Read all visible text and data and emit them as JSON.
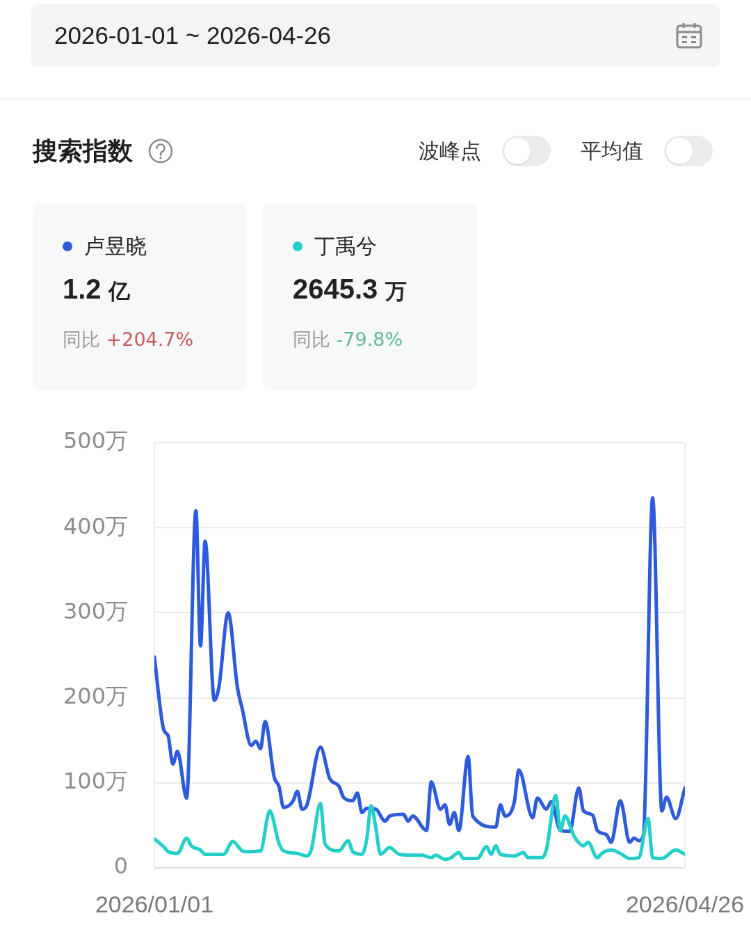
{
  "chart_data": {
    "type": "line",
    "title": "搜索指数",
    "subtitle": "2026-01-01 ~ 2026-04-26",
    "annotations": [
      "波峰点",
      "平均值",
      "1.2 亿",
      "同比 +204.7%",
      "2645.3 万",
      "同比 -79.8%"
    ],
    "xlim": [
      "2026-01-01",
      "2026-04-26"
    ],
    "xticks": [
      {
        "value": "2026-01-01",
        "label": "2026/01/01"
      },
      {
        "value": "2026-04-26",
        "label": "2026/04/26"
      }
    ],
    "ylim": [
      0,
      500
    ],
    "yticks": [
      0,
      {
        "value": 100,
        "label": "100万"
      },
      {
        "value": 200,
        "label": "200万"
      },
      {
        "value": 300,
        "label": "300万"
      },
      {
        "value": 400,
        "label": "400万"
      },
      {
        "value": 500,
        "label": "500万"
      }
    ],
    "grid": "y",
    "legend": "top left",
    "marker": "none",
    "series": [
      {
        "name": "卢昱晓",
        "color": "#2d5bdc",
        "x": [
          "2026-01-01",
          "2026-01-03",
          "2026-01-04",
          "2026-01-05",
          "2026-01-06",
          "2026-01-08",
          "2026-01-10",
          "2026-01-11",
          "2026-01-12",
          "2026-01-14",
          "2026-01-15",
          "2026-01-17",
          "2026-01-19",
          "2026-01-20",
          "2026-01-22",
          "2026-01-23",
          "2026-01-24",
          "2026-01-25",
          "2026-01-27",
          "2026-01-28",
          "2026-01-29",
          "2026-01-31",
          "2026-02-01",
          "2026-02-02",
          "2026-02-03",
          "2026-02-06",
          "2026-02-08",
          "2026-02-10",
          "2026-02-11",
          "2026-02-13",
          "2026-02-14",
          "2026-02-15",
          "2026-02-16",
          "2026-02-18",
          "2026-02-20",
          "2026-02-21",
          "2026-02-24",
          "2026-02-25",
          "2026-02-26",
          "2026-03-01",
          "2026-03-02",
          "2026-03-04",
          "2026-03-05",
          "2026-03-06",
          "2026-03-07",
          "2026-03-08",
          "2026-03-10",
          "2026-03-11",
          "2026-03-16",
          "2026-03-17",
          "2026-03-18",
          "2026-03-20",
          "2026-03-21",
          "2026-03-24",
          "2026-03-25",
          "2026-03-27",
          "2026-03-28",
          "2026-03-30",
          "2026-04-01",
          "2026-04-03",
          "2026-04-04",
          "2026-04-06",
          "2026-04-07",
          "2026-04-09",
          "2026-04-10",
          "2026-04-12",
          "2026-04-14",
          "2026-04-15",
          "2026-04-16",
          "2026-04-17",
          "2026-04-19",
          "2026-04-21",
          "2026-04-22",
          "2026-04-24",
          "2026-04-26"
        ],
        "values": [
          248,
          163,
          155,
          122,
          137,
          82,
          420,
          261,
          384,
          197,
          213,
          300,
          212,
          188,
          144,
          149,
          140,
          172,
          106,
          96,
          71,
          78,
          90,
          69,
          73,
          142,
          105,
          96,
          83,
          79,
          88,
          65,
          70,
          69,
          55,
          61,
          63,
          55,
          61,
          44,
          101,
          69,
          74,
          51,
          65,
          44,
          131,
          61,
          48,
          74,
          61,
          77,
          115,
          59,
          82,
          69,
          78,
          44,
          43,
          94,
          67,
          62,
          44,
          39,
          30,
          79,
          30,
          35,
          32,
          38,
          435,
          67,
          83,
          58,
          94
        ]
      },
      {
        "name": "丁禹兮",
        "color": "#24cfc9",
        "x": [
          "2026-01-01",
          "2026-01-03",
          "2026-01-04",
          "2026-01-06",
          "2026-01-08",
          "2026-01-09",
          "2026-01-11",
          "2026-01-12",
          "2026-01-16",
          "2026-01-18",
          "2026-01-20",
          "2026-01-21",
          "2026-01-24",
          "2026-01-26",
          "2026-01-28",
          "2026-01-29",
          "2026-02-01",
          "2026-02-03",
          "2026-02-04",
          "2026-02-06",
          "2026-02-07",
          "2026-02-10",
          "2026-02-12",
          "2026-02-13",
          "2026-02-15",
          "2026-02-16",
          "2026-02-17",
          "2026-02-18",
          "2026-02-19",
          "2026-02-21",
          "2026-02-23",
          "2026-02-25",
          "2026-02-28",
          "2026-03-02",
          "2026-03-03",
          "2026-03-05",
          "2026-03-06",
          "2026-03-08",
          "2026-03-09",
          "2026-03-12",
          "2026-03-14",
          "2026-03-15",
          "2026-03-16",
          "2026-03-17",
          "2026-03-20",
          "2026-03-22",
          "2026-03-23",
          "2026-03-26",
          "2026-03-27",
          "2026-03-29",
          "2026-03-30",
          "2026-03-31",
          "2026-04-02",
          "2026-04-04",
          "2026-04-05",
          "2026-04-07",
          "2026-04-08",
          "2026-04-10",
          "2026-04-12",
          "2026-04-14",
          "2026-04-16",
          "2026-04-18",
          "2026-04-19",
          "2026-04-21",
          "2026-04-24",
          "2026-04-26"
        ],
        "values": [
          34,
          25,
          19,
          17,
          35,
          26,
          21,
          16,
          16,
          31,
          20,
          19,
          20,
          67,
          29,
          20,
          17,
          14,
          21,
          76,
          28,
          20,
          32,
          19,
          16,
          33,
          73,
          47,
          16,
          24,
          16,
          15,
          15,
          12,
          15,
          10,
          11,
          18,
          11,
          11,
          25,
          16,
          26,
          16,
          14,
          18,
          12,
          12,
          22,
          85,
          44,
          61,
          37,
          26,
          30,
          12,
          17,
          21,
          17,
          11,
          12,
          58,
          12,
          11,
          21,
          16
        ]
      }
    ]
  }
}
